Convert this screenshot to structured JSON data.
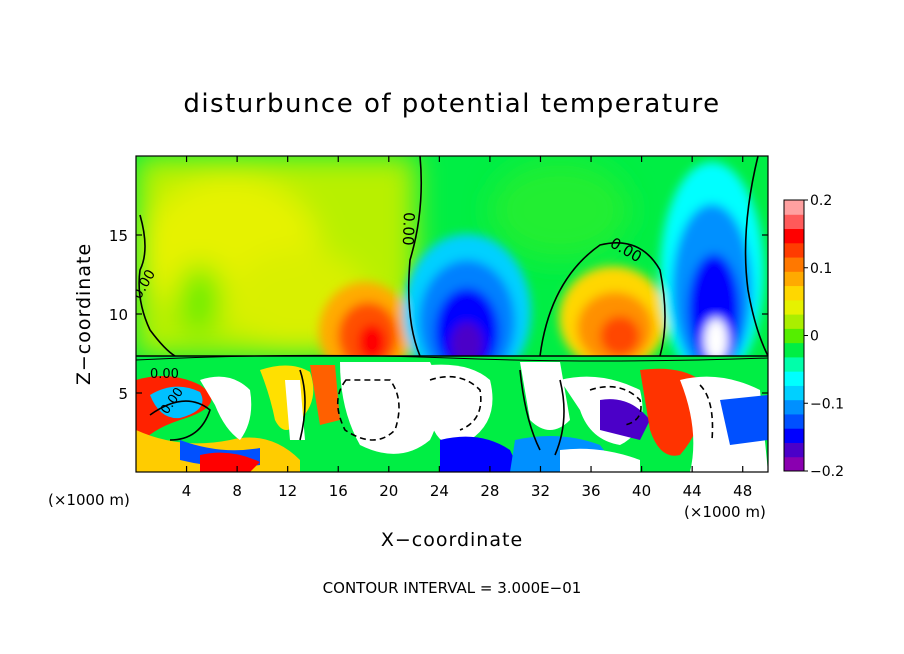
{
  "chart_data": {
    "type": "heatmap",
    "title": "disturbunce of potential temperature",
    "xlabel": "X−coordinate",
    "ylabel": "Z−coordinate",
    "x_unit_left": "(×1000 m)",
    "x_unit_right": "(×1000 m)",
    "footer": "CONTOUR INTERVAL = 3.000E−01",
    "xlim": [
      0,
      50
    ],
    "ylim": [
      0,
      20
    ],
    "x_ticks": [
      4,
      8,
      12,
      16,
      20,
      24,
      28,
      32,
      36,
      40,
      44,
      48
    ],
    "x_tick_labels": [
      "4",
      "8",
      "12",
      "16",
      "20",
      "24",
      "28",
      "32",
      "36",
      "40",
      "44",
      "48"
    ],
    "y_ticks": [
      5,
      10,
      15
    ],
    "y_tick_labels": [
      "5",
      "10",
      "15"
    ],
    "colorbar": {
      "min": -0.2,
      "max": 0.2,
      "ticks": [
        0.2,
        0.1,
        0,
        -0.1,
        -0.2
      ],
      "tick_labels": [
        "0.2",
        "0.1",
        "0",
        "−0.1",
        "−0.2"
      ],
      "colors": [
        "#8a00b0",
        "#4b00c8",
        "#0000ff",
        "#0050ff",
        "#0090ff",
        "#00d0ff",
        "#00ffff",
        "#00ffaa",
        "#00ee44",
        "#55ee00",
        "#aaee00",
        "#e6f200",
        "#ffd700",
        "#ffaa00",
        "#ff7800",
        "#ff3c00",
        "#ff0000",
        "#ff5a5a",
        "#ffa0a0"
      ]
    },
    "contour_labels": [
      "0.00",
      "0.00",
      "0.00",
      "0.00",
      "0.00"
    ],
    "field": {
      "background_value": 0.0,
      "upper_layer": [
        {
          "x": 6,
          "z": 14,
          "value": 0.06,
          "rx": 6,
          "rz": 5
        },
        {
          "x": 12,
          "z": 11,
          "value": 0.05,
          "rx": 5,
          "rz": 4
        },
        {
          "x": 20,
          "z": 8.8,
          "value": 0.16,
          "rx": 2.2,
          "rz": 2.6
        },
        {
          "x": 26,
          "z": 9.5,
          "value": -0.2,
          "rx": 3,
          "rz": 5
        },
        {
          "x": 37.5,
          "z": 9,
          "value": 0.12,
          "rx": 3.5,
          "rz": 3.5
        },
        {
          "x": 45.5,
          "z": 11,
          "value": -0.2,
          "rx": 3,
          "rz": 6
        }
      ],
      "lower_layer_top_z": 7.2
    }
  }
}
